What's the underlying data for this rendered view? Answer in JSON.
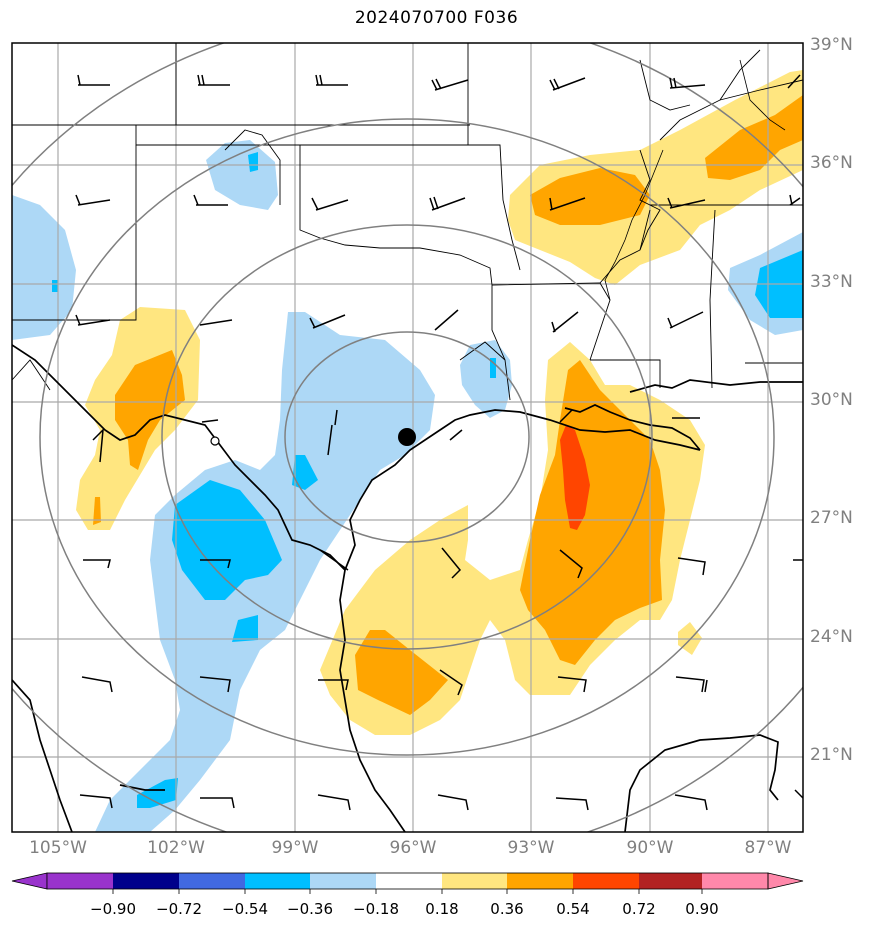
{
  "title": "2024070700 F036",
  "lat_labels": [
    "39°N",
    "36°N",
    "33°N",
    "30°N",
    "27°N",
    "24°N",
    "21°N"
  ],
  "lon_labels": [
    "105°W",
    "102°W",
    "99°W",
    "96°W",
    "93°W",
    "90°W",
    "87°W"
  ],
  "colorbar": {
    "ticks": [
      "−0.90",
      "−0.72",
      "−0.54",
      "−0.36",
      "−0.18",
      "0.18",
      "0.36",
      "0.54",
      "0.72",
      "0.90"
    ],
    "colors": [
      "#9933cc",
      "#00008b",
      "#4169e1",
      "#00bfff",
      "#add8f6",
      "#ffffff",
      "#ffe680",
      "#ffa500",
      "#ff4500",
      "#b22222",
      "#ff88aa"
    ]
  },
  "colors": {
    "light_blue": "#add8f6",
    "blue": "#00bfff",
    "yellow": "#ffe680",
    "orange": "#ffa500",
    "red_orange": "#ff4500",
    "grid": "#a9a9a9",
    "range_rings": "#808080"
  },
  "icons": {
    "station_marker": "filled-circle",
    "wind_barbs": "wind-barb-glyphs"
  }
}
